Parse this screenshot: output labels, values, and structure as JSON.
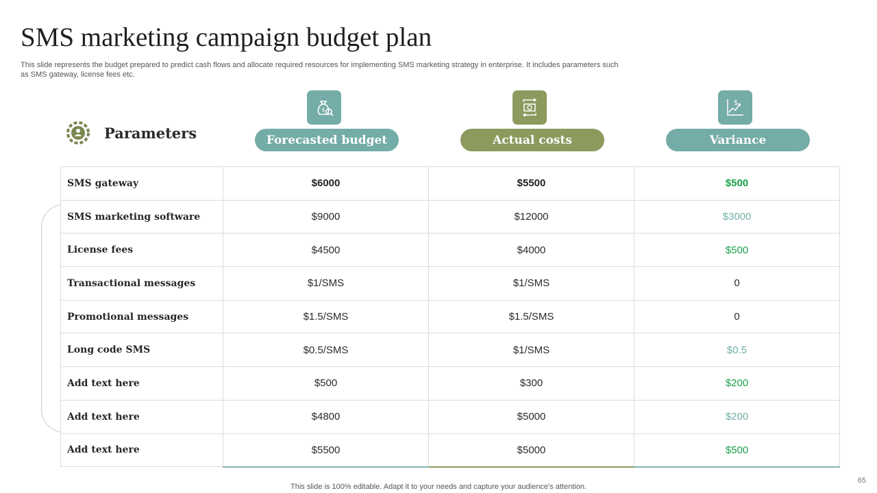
{
  "slide": {
    "title": "SMS marketing campaign budget plan",
    "subtitle": "This slide represents the budget prepared to predict cash flows and allocate required resources for implementing SMS marketing strategy in enterprise. It includes parameters such as SMS gateway, license fees etc.",
    "footer": "This slide is 100% editable. Adapt it to your needs and capture your audience's attention.",
    "page_number": "65"
  },
  "parameters_header": {
    "label": "Parameters",
    "icon": "gear-people-icon"
  },
  "columns": [
    {
      "label": "Forecasted budget",
      "icon": "money-bag-search-icon",
      "color": "#74aca7"
    },
    {
      "label": "Actual costs",
      "icon": "cash-exchange-icon",
      "color": "#8c9a5e"
    },
    {
      "label": "Variance",
      "icon": "dollar-chart-icon",
      "color": "#74aca7"
    }
  ],
  "rows": [
    {
      "parameter": "SMS gateway",
      "forecast": "$6000",
      "actual": "$5500",
      "variance": "$500"
    },
    {
      "parameter": "SMS marketing software",
      "forecast": "$9000",
      "actual": "$12000",
      "variance": "$3000"
    },
    {
      "parameter": "License fees",
      "forecast": "$4500",
      "actual": "$4000",
      "variance": "$500"
    },
    {
      "parameter": "Transactional messages",
      "forecast": "$1/SMS",
      "actual": "$1/SMS",
      "variance": "0"
    },
    {
      "parameter": "Promotional messages",
      "forecast": "$1.5/SMS",
      "actual": "$1.5/SMS",
      "variance": "0"
    },
    {
      "parameter": "Long code SMS",
      "forecast": "$0.5/SMS",
      "actual": "$1/SMS",
      "variance": "$0.5"
    },
    {
      "parameter": "Add text here",
      "forecast": "$500",
      "actual": "$300",
      "variance": "$200"
    },
    {
      "parameter": "Add text here",
      "forecast": "$4800",
      "actual": "$5000",
      "variance": "$200"
    },
    {
      "parameter": "Add text here",
      "forecast": "$5500",
      "actual": "$5000",
      "variance": "$500"
    }
  ],
  "colors": {
    "teal": "#74aca7",
    "olive": "#8c9a5e",
    "variance_saving": "#1aa04a",
    "variance_overrun": "#6fb0a8"
  }
}
